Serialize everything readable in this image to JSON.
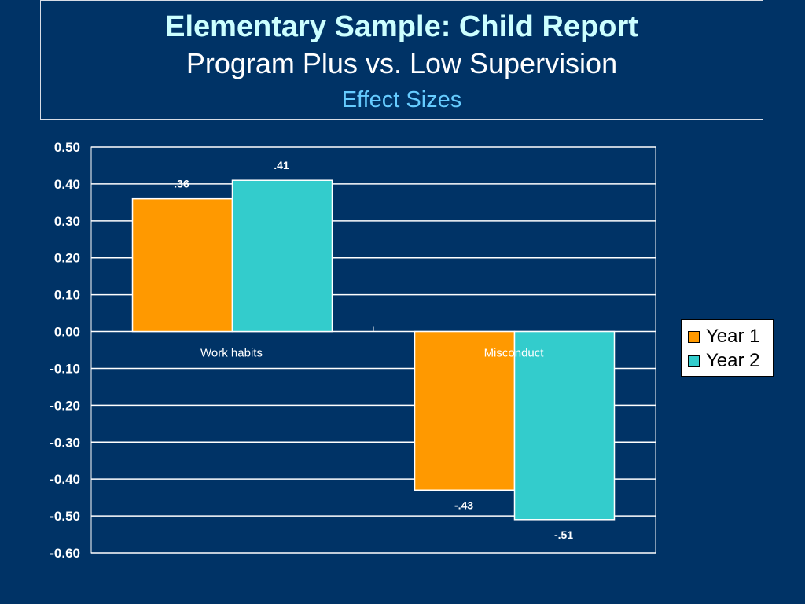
{
  "title": {
    "line1": "Elementary Sample: Child Report",
    "line2": "Program Plus vs. Low Supervision",
    "line3": "Effect Sizes"
  },
  "colors": {
    "background": "#003366",
    "year1": "#ff9900",
    "year2": "#33cccc",
    "plot_area": "#003366",
    "gridline": "#ffffff"
  },
  "chart_data": {
    "type": "bar",
    "categories": [
      "Work habits",
      "Misconduct"
    ],
    "series": [
      {
        "name": "Year 1",
        "values": [
          0.36,
          -0.43
        ],
        "labels": [
          ".36",
          "-.43"
        ]
      },
      {
        "name": "Year 2",
        "values": [
          0.41,
          -0.51
        ],
        "labels": [
          ".41",
          "-.51"
        ]
      }
    ],
    "ylim": [
      -0.6,
      0.5
    ],
    "yticks": [
      "0.50",
      "0.40",
      "0.30",
      "0.20",
      "0.10",
      "0.00",
      "-0.10",
      "-0.20",
      "-0.30",
      "-0.40",
      "-0.50",
      "-0.60"
    ],
    "ytick_values": [
      0.5,
      0.4,
      0.3,
      0.2,
      0.1,
      0.0,
      -0.1,
      -0.2,
      -0.3,
      -0.4,
      -0.5,
      -0.6
    ],
    "grid": true,
    "legend_position": "right"
  }
}
